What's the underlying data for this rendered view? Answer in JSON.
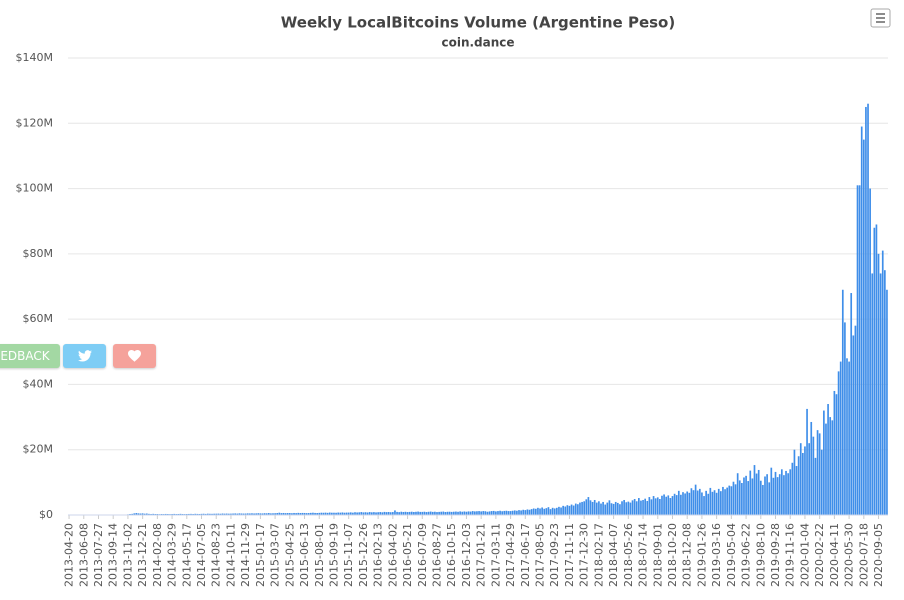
{
  "chart_data": {
    "type": "bar",
    "title": "Weekly LocalBitcoins Volume (Argentine Peso)",
    "subtitle": "coin.dance",
    "color": "#3f8ee9",
    "grid": true,
    "ylim": [
      0,
      140
    ],
    "yticks": [
      {
        "value": 0,
        "label": "$0"
      },
      {
        "value": 20,
        "label": "$20M"
      },
      {
        "value": 40,
        "label": "$40M"
      },
      {
        "value": 60,
        "label": "$60M"
      },
      {
        "value": 80,
        "label": "$80M"
      },
      {
        "value": 100,
        "label": "$100M"
      },
      {
        "value": 120,
        "label": "$120M"
      },
      {
        "value": 140,
        "label": "$140M"
      }
    ],
    "categories": [
      "2013-04-20",
      null,
      null,
      null,
      null,
      null,
      null,
      "2013-06-08",
      null,
      null,
      null,
      null,
      null,
      null,
      "2013-07-27",
      null,
      null,
      null,
      null,
      null,
      null,
      "2013-09-14",
      null,
      null,
      null,
      null,
      null,
      null,
      "2013-11-02",
      null,
      null,
      null,
      null,
      null,
      null,
      "2013-12-21",
      null,
      null,
      null,
      null,
      null,
      null,
      "2014-02-08",
      null,
      null,
      null,
      null,
      null,
      null,
      "2014-03-29",
      null,
      null,
      null,
      null,
      null,
      null,
      "2014-05-17",
      null,
      null,
      null,
      null,
      null,
      null,
      "2014-07-05",
      null,
      null,
      null,
      null,
      null,
      null,
      "2014-08-23",
      null,
      null,
      null,
      null,
      null,
      null,
      "2014-10-11",
      null,
      null,
      null,
      null,
      null,
      null,
      "2014-11-29",
      null,
      null,
      null,
      null,
      null,
      null,
      "2015-01-17",
      null,
      null,
      null,
      null,
      null,
      null,
      "2015-03-07",
      null,
      null,
      null,
      null,
      null,
      null,
      "2015-04-25",
      null,
      null,
      null,
      null,
      null,
      null,
      "2015-06-13",
      null,
      null,
      null,
      null,
      null,
      null,
      "2015-08-01",
      null,
      null,
      null,
      null,
      null,
      null,
      "2015-09-19",
      null,
      null,
      null,
      null,
      null,
      null,
      "2015-11-07",
      null,
      null,
      null,
      null,
      null,
      null,
      "2015-12-26",
      null,
      null,
      null,
      null,
      null,
      null,
      "2016-02-13",
      null,
      null,
      null,
      null,
      null,
      null,
      "2016-04-02",
      null,
      null,
      null,
      null,
      null,
      null,
      "2016-05-21",
      null,
      null,
      null,
      null,
      null,
      null,
      "2016-07-09",
      null,
      null,
      null,
      null,
      null,
      null,
      "2016-08-27",
      null,
      null,
      null,
      null,
      null,
      null,
      "2016-10-15",
      null,
      null,
      null,
      null,
      null,
      null,
      "2016-12-03",
      null,
      null,
      null,
      null,
      null,
      null,
      "2017-01-21",
      null,
      null,
      null,
      null,
      null,
      null,
      "2017-03-11",
      null,
      null,
      null,
      null,
      null,
      null,
      "2017-04-29",
      null,
      null,
      null,
      null,
      null,
      null,
      "2017-06-17",
      null,
      null,
      null,
      null,
      null,
      null,
      "2017-08-05",
      null,
      null,
      null,
      null,
      null,
      null,
      "2017-09-23",
      null,
      null,
      null,
      null,
      null,
      null,
      "2017-11-11",
      null,
      null,
      null,
      null,
      null,
      null,
      "2017-12-30",
      null,
      null,
      null,
      null,
      null,
      null,
      "2018-02-17",
      null,
      null,
      null,
      null,
      null,
      null,
      "2018-04-07",
      null,
      null,
      null,
      null,
      null,
      null,
      "2018-05-26",
      null,
      null,
      null,
      null,
      null,
      null,
      "2018-07-14",
      null,
      null,
      null,
      null,
      null,
      null,
      "2018-09-01",
      null,
      null,
      null,
      null,
      null,
      null,
      "2018-10-20",
      null,
      null,
      null,
      null,
      null,
      null,
      "2018-12-08",
      null,
      null,
      null,
      null,
      null,
      null,
      "2019-01-26",
      null,
      null,
      null,
      null,
      null,
      null,
      "2019-03-16",
      null,
      null,
      null,
      null,
      null,
      null,
      "2019-05-04",
      null,
      null,
      null,
      null,
      null,
      null,
      "2019-06-22",
      null,
      null,
      null,
      null,
      null,
      null,
      "2019-08-10",
      null,
      null,
      null,
      null,
      null,
      null,
      "2019-09-28",
      null,
      null,
      null,
      null,
      null,
      null,
      "2019-11-16",
      null,
      null,
      null,
      null,
      null,
      null,
      "2020-01-04",
      null,
      null,
      null,
      null,
      null,
      null,
      "2020-02-22",
      null,
      null,
      null,
      null,
      null,
      null,
      "2020-04-11",
      null,
      null,
      null,
      null,
      null,
      null,
      "2020-05-30",
      null,
      null,
      null,
      null,
      null,
      null,
      "2020-07-18",
      null,
      null,
      null,
      null,
      null,
      null,
      "2020-09-05",
      null,
      null,
      null,
      null
    ],
    "values": [
      0.02,
      0.03,
      0.02,
      0.03,
      0.04,
      0.03,
      0.03,
      0.03,
      0.04,
      0.03,
      0.04,
      0.05,
      0.04,
      0.05,
      0.05,
      0.06,
      0.05,
      0.07,
      0.06,
      0.08,
      0.07,
      0.08,
      0.1,
      0.09,
      0.12,
      0.1,
      0.13,
      0.15,
      0.2,
      0.3,
      0.35,
      0.5,
      0.6,
      0.5,
      0.45,
      0.5,
      0.4,
      0.45,
      0.35,
      0.3,
      0.35,
      0.3,
      0.3,
      0.25,
      0.3,
      0.28,
      0.32,
      0.3,
      0.27,
      0.3,
      0.33,
      0.29,
      0.31,
      0.35,
      0.3,
      0.28,
      0.3,
      0.32,
      0.34,
      0.3,
      0.36,
      0.33,
      0.31,
      0.35,
      0.38,
      0.33,
      0.4,
      0.37,
      0.36,
      0.39,
      0.4,
      0.42,
      0.38,
      0.45,
      0.41,
      0.44,
      0.4,
      0.42,
      0.45,
      0.48,
      0.43,
      0.5,
      0.46,
      0.44,
      0.45,
      0.5,
      0.48,
      0.52,
      0.47,
      0.5,
      0.55,
      0.5,
      0.48,
      0.55,
      0.52,
      0.6,
      0.5,
      0.53,
      0.55,
      0.6,
      0.7,
      0.58,
      0.62,
      0.57,
      0.6,
      0.6,
      0.55,
      0.62,
      0.58,
      0.65,
      0.6,
      0.63,
      0.62,
      0.58,
      0.6,
      0.65,
      0.7,
      0.63,
      0.6,
      0.65,
      0.7,
      0.68,
      0.72,
      0.66,
      0.75,
      0.7,
      0.7,
      0.68,
      0.75,
      0.72,
      0.78,
      0.7,
      0.74,
      0.75,
      0.8,
      0.72,
      0.85,
      0.78,
      0.82,
      0.9,
      0.8,
      0.85,
      0.78,
      0.9,
      0.82,
      0.88,
      0.8,
      0.85,
      0.9,
      0.82,
      0.95,
      0.88,
      0.92,
      0.85,
      0.9,
      1.4,
      0.95,
      0.88,
      1.0,
      0.92,
      0.98,
      0.9,
      0.95,
      1.0,
      0.92,
      0.98,
      1.05,
      0.95,
      0.95,
      1.0,
      0.9,
      0.98,
      1.05,
      0.95,
      1.0,
      0.9,
      0.95,
      1.0,
      1.05,
      0.92,
      0.98,
      1.0,
      0.95,
      1.0,
      1.05,
      0.98,
      1.1,
      1.0,
      1.08,
      1.0,
      1.1,
      1.05,
      1.2,
      1.1,
      1.15,
      1.2,
      1.1,
      1.2,
      1.15,
      1.0,
      1.1,
      1.2,
      1.25,
      1.1,
      1.2,
      1.3,
      1.15,
      1.25,
      1.3,
      1.2,
      1.2,
      1.3,
      1.4,
      1.3,
      1.5,
      1.4,
      1.6,
      1.5,
      1.7,
      1.6,
      1.8,
      2.0,
      1.9,
      2.2,
      2.0,
      2.3,
      1.9,
      2.1,
      2.4,
      1.8,
      2.2,
      2.0,
      2.2,
      2.5,
      2.3,
      2.8,
      2.6,
      3.0,
      2.8,
      3.2,
      2.9,
      3.5,
      3.3,
      3.8,
      4.0,
      4.2,
      4.8,
      5.5,
      4.5,
      4.0,
      4.6,
      3.8,
      4.2,
      3.5,
      4.0,
      3.2,
      3.8,
      4.5,
      3.6,
      3.4,
      4.0,
      3.7,
      3.3,
      4.2,
      4.6,
      3.9,
      4.1,
      3.8,
      4.5,
      4.9,
      4.2,
      5.2,
      4.4,
      4.6,
      5.0,
      4.3,
      5.5,
      4.8,
      5.8,
      5.1,
      5.4,
      4.9,
      5.9,
      6.3,
      5.6,
      6.0,
      5.2,
      5.8,
      6.5,
      6.1,
      7.4,
      6.2,
      7.0,
      6.6,
      7.2,
      6.8,
      8.2,
      7.6,
      9.3,
      7.5,
      8.0,
      6.9,
      5.8,
      7.4,
      6.5,
      8.3,
      7.1,
      7.6,
      6.8,
      8.0,
      7.3,
      8.6,
      7.9,
      8.4,
      9.0,
      8.8,
      10.2,
      9.4,
      12.8,
      10.6,
      9.8,
      11.5,
      12.0,
      10.4,
      13.6,
      11.2,
      15.3,
      12.7,
      13.8,
      10.5,
      9.2,
      11.8,
      12.5,
      10.0,
      14.5,
      11.4,
      13.2,
      11.6,
      12.5,
      14.0,
      12.2,
      13.5,
      12.8,
      14,
      16,
      20,
      15,
      18,
      22,
      19,
      21,
      32.5,
      22,
      28.5,
      24,
      17.5,
      26,
      25,
      20,
      32,
      28,
      34,
      30,
      29,
      38,
      37,
      44,
      47,
      69,
      59,
      48,
      47,
      68,
      55,
      58,
      101,
      101,
      119,
      115,
      125,
      126,
      100,
      74,
      88,
      89,
      80,
      74,
      81,
      75,
      69
    ]
  },
  "buttons": {
    "feedback": "EDBACK"
  }
}
